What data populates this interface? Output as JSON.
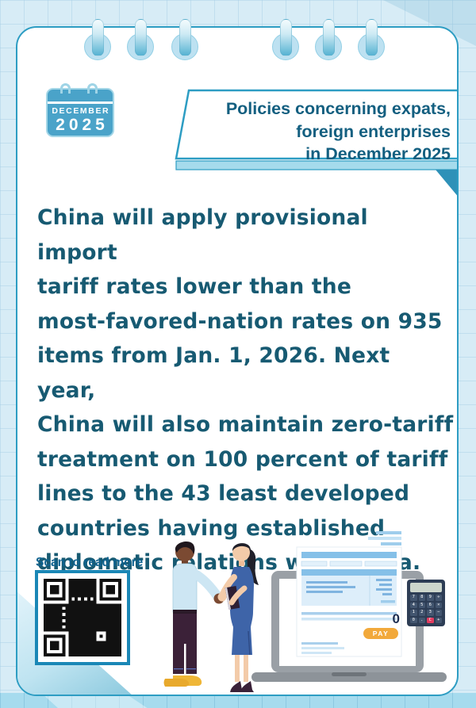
{
  "calendar": {
    "month": "DECEMBER",
    "year": "2025"
  },
  "banner": {
    "title": "Policies concerning expats,\nforeign enterprises\nin December 2025"
  },
  "body": {
    "paragraph": "China will apply provisional import\ntariff rates lower than the\nmost-favored-nation rates on 935\nitems from Jan. 1, 2026. Next year,\nChina will also maintain zero-tariff\ntreatment on 100 percent of tariff\nlines to the 43 least developed\ncountries having established\ndiplomatic relations with China."
  },
  "footer": {
    "scan_label": "Scan to read more"
  },
  "laptop_screen": {
    "pay_label": "PAY",
    "amount": "0"
  },
  "calculator": {
    "keys": [
      "7",
      "8",
      "9",
      "÷",
      "4",
      "5",
      "6",
      "×",
      "1",
      "2",
      "3",
      "−",
      "0",
      ".",
      "C",
      "+"
    ],
    "red_key": "C"
  },
  "colors": {
    "card_border": "#2d9dc3",
    "banner_text": "#135f80",
    "body_text": "#175a72",
    "calendar_fill": "#4aa3c9",
    "qr_border": "#1a87b6",
    "pay_button": "#f2a93b",
    "background": "#d7ecf6"
  }
}
